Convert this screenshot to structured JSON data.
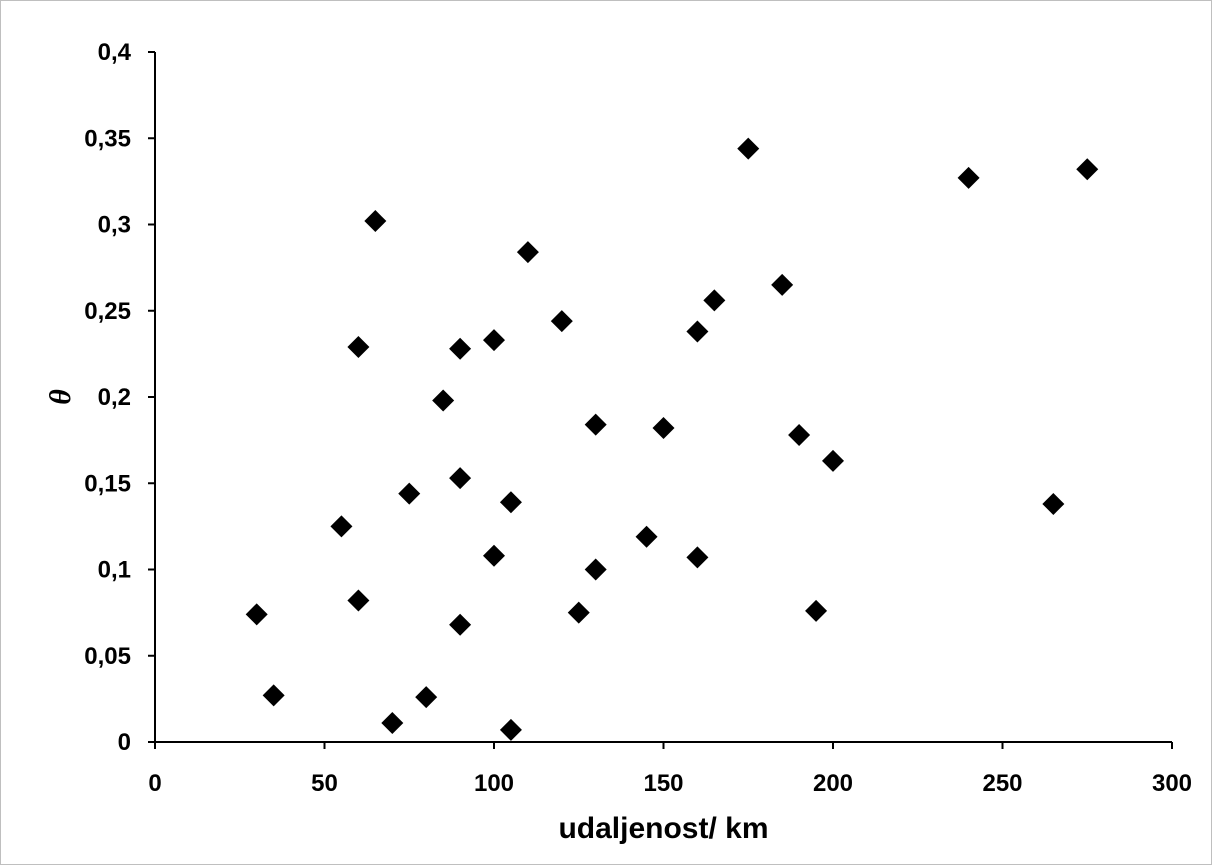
{
  "chart_data": {
    "type": "scatter",
    "title": "",
    "xlabel": "udaljenost/ km",
    "ylabel": "θ",
    "xlim": [
      0,
      300
    ],
    "ylim": [
      0,
      0.4
    ],
    "x_ticks": [
      0,
      50,
      100,
      150,
      200,
      250,
      300
    ],
    "y_ticks": [
      0,
      0.05,
      0.1,
      0.15,
      0.2,
      0.25,
      0.3,
      0.35,
      0.4
    ],
    "x_tick_labels": [
      "0",
      "50",
      "100",
      "150",
      "200",
      "250",
      "300"
    ],
    "y_tick_labels": [
      "0",
      "0,05",
      "0,1",
      "0,15",
      "0,2",
      "0,25",
      "0,3",
      "0,35",
      "0,4"
    ],
    "grid": false,
    "legend": "none",
    "marker": "diamond",
    "marker_color": "#000000",
    "points": [
      {
        "x": 30,
        "y": 0.074
      },
      {
        "x": 35,
        "y": 0.027
      },
      {
        "x": 55,
        "y": 0.125
      },
      {
        "x": 60,
        "y": 0.229
      },
      {
        "x": 60,
        "y": 0.082
      },
      {
        "x": 65,
        "y": 0.302
      },
      {
        "x": 70,
        "y": 0.011
      },
      {
        "x": 75,
        "y": 0.144
      },
      {
        "x": 80,
        "y": 0.026
      },
      {
        "x": 85,
        "y": 0.198
      },
      {
        "x": 90,
        "y": 0.228
      },
      {
        "x": 90,
        "y": 0.153
      },
      {
        "x": 90,
        "y": 0.068
      },
      {
        "x": 100,
        "y": 0.233
      },
      {
        "x": 100,
        "y": 0.108
      },
      {
        "x": 105,
        "y": 0.139
      },
      {
        "x": 105,
        "y": 0.007
      },
      {
        "x": 110,
        "y": 0.284
      },
      {
        "x": 120,
        "y": 0.244
      },
      {
        "x": 125,
        "y": 0.075
      },
      {
        "x": 130,
        "y": 0.184
      },
      {
        "x": 130,
        "y": 0.1
      },
      {
        "x": 145,
        "y": 0.119
      },
      {
        "x": 150,
        "y": 0.182
      },
      {
        "x": 160,
        "y": 0.238
      },
      {
        "x": 160,
        "y": 0.107
      },
      {
        "x": 165,
        "y": 0.256
      },
      {
        "x": 175,
        "y": 0.344
      },
      {
        "x": 185,
        "y": 0.265
      },
      {
        "x": 190,
        "y": 0.178
      },
      {
        "x": 195,
        "y": 0.076
      },
      {
        "x": 200,
        "y": 0.163
      },
      {
        "x": 240,
        "y": 0.327
      },
      {
        "x": 265,
        "y": 0.138
      },
      {
        "x": 275,
        "y": 0.332
      }
    ]
  }
}
